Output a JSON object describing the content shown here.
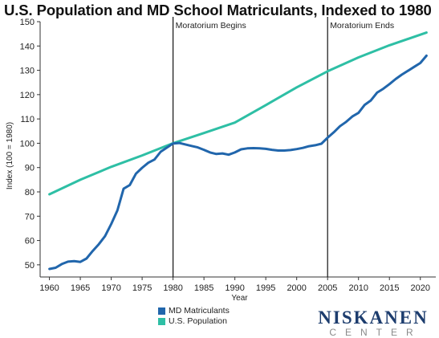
{
  "title": "U.S. Population and MD School Matriculants, Indexed to 1980",
  "colors": {
    "md_matriculants": "#2166ac",
    "us_population": "#2ebfa5",
    "annotation_line": "#111111",
    "axis": "#333333"
  },
  "chart_data": {
    "type": "line",
    "title": "U.S. Population and MD School Matriculants, Indexed to 1980",
    "xlabel": "Year",
    "ylabel": "Index (100 = 1980)",
    "xlim": [
      1958.5,
      2022.5
    ],
    "ylim": [
      45,
      150
    ],
    "x_ticks": [
      1960,
      1965,
      1970,
      1975,
      1980,
      1985,
      1990,
      1995,
      2000,
      2005,
      2010,
      2015,
      2020
    ],
    "y_ticks": [
      50,
      60,
      70,
      80,
      90,
      100,
      110,
      120,
      130,
      140,
      150
    ],
    "grid": false,
    "legend_position": "bottom",
    "annotations": [
      {
        "x": 1980,
        "label": "Moratorium Begins"
      },
      {
        "x": 2005,
        "label": "Moratorium Ends"
      }
    ],
    "series": [
      {
        "name": "MD Matriculants",
        "x": [
          1960,
          1961,
          1962,
          1963,
          1964,
          1965,
          1966,
          1967,
          1968,
          1969,
          1970,
          1971,
          1972,
          1973,
          1974,
          1975,
          1976,
          1977,
          1978,
          1979,
          1980,
          1981,
          1982,
          1983,
          1984,
          1985,
          1986,
          1987,
          1988,
          1989,
          1990,
          1991,
          1992,
          1993,
          1994,
          1995,
          1996,
          1997,
          1998,
          1999,
          2000,
          2001,
          2002,
          2003,
          2004,
          2005,
          2006,
          2007,
          2008,
          2009,
          2010,
          2011,
          2012,
          2013,
          2014,
          2015,
          2016,
          2017,
          2018,
          2019,
          2020,
          2021
        ],
        "values": [
          48.3,
          48.8,
          50.3,
          51.3,
          51.5,
          51.2,
          52.6,
          55.7,
          58.5,
          61.8,
          66.8,
          72.4,
          81.3,
          82.8,
          87.5,
          89.9,
          92.0,
          93.3,
          96.5,
          98.2,
          99.9,
          100.1,
          99.5,
          98.9,
          98.3,
          97.3,
          96.2,
          95.6,
          95.8,
          95.3,
          96.2,
          97.5,
          97.9,
          98.0,
          97.9,
          97.7,
          97.3,
          97.0,
          97.0,
          97.2,
          97.6,
          98.1,
          98.8,
          99.2,
          99.8,
          102.3,
          104.5,
          107.0,
          108.8,
          111.0,
          112.5,
          115.8,
          117.6,
          120.8,
          122.4,
          124.3,
          126.4,
          128.2,
          129.8,
          131.4,
          133.0,
          136.0
        ]
      },
      {
        "name": "U.S. Population",
        "x": [
          1960,
          1965,
          1970,
          1975,
          1980,
          1985,
          1990,
          1995,
          2000,
          2005,
          2010,
          2015,
          2021
        ],
        "values": [
          79.0,
          85.0,
          90.3,
          95.0,
          100.0,
          104.2,
          108.5,
          115.7,
          123.0,
          129.6,
          135.3,
          140.3,
          145.5
        ]
      }
    ]
  }
}
